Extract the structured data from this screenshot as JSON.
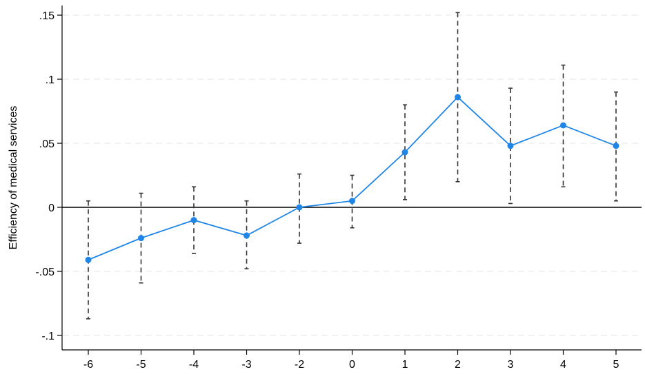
{
  "chart_data": {
    "type": "line",
    "title": "",
    "xlabel": "",
    "ylabel": "Efficiency of medical services",
    "categories": [
      "-6",
      "-5",
      "-4",
      "-3",
      "-2",
      "0",
      "1",
      "2",
      "3",
      "4",
      "5"
    ],
    "ylim": [
      -0.1,
      0.16
    ],
    "yticks": [
      -0.1,
      -0.05,
      0,
      0.05,
      0.1,
      0.15
    ],
    "ytick_labels": [
      "-.1",
      "-.05",
      "0",
      ".05",
      ".1",
      ".15"
    ],
    "grid": "horizontal-dashed",
    "reference_line": 0,
    "series": [
      {
        "values": [
          -0.041,
          -0.024,
          -0.01,
          -0.022,
          0.0,
          0.005,
          0.043,
          0.086,
          0.048,
          0.064,
          0.048
        ],
        "ci_lower": [
          -0.087,
          -0.059,
          -0.036,
          -0.048,
          -0.028,
          -0.016,
          0.006,
          0.02,
          0.003,
          0.016,
          0.005
        ],
        "ci_upper": [
          0.005,
          0.011,
          0.016,
          0.005,
          0.026,
          0.025,
          0.08,
          0.152,
          0.093,
          0.111,
          0.09
        ],
        "color": "#1f86e8"
      }
    ],
    "error_bar_color": "#333333"
  }
}
